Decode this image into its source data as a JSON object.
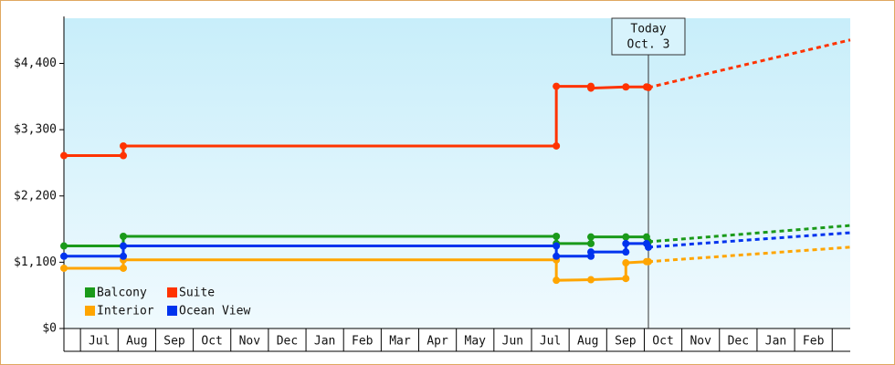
{
  "chart_data": {
    "type": "step-line",
    "ylim": [
      0,
      5150
    ],
    "yticks": [
      {
        "value": 0,
        "label": "$0"
      },
      {
        "value": 1100,
        "label": "$1,100"
      },
      {
        "value": 2200,
        "label": "$2,200"
      },
      {
        "value": 3300,
        "label": "$3,300"
      },
      {
        "value": 4400,
        "label": "$4,400"
      }
    ],
    "xlim": [
      0,
      20.92
    ],
    "xticks": [
      {
        "value": 0.94,
        "label": "Jul"
      },
      {
        "value": 1.94,
        "label": "Aug"
      },
      {
        "value": 2.94,
        "label": "Sep"
      },
      {
        "value": 3.94,
        "label": "Oct"
      },
      {
        "value": 4.94,
        "label": "Nov"
      },
      {
        "value": 5.94,
        "label": "Dec"
      },
      {
        "value": 6.94,
        "label": "Jan"
      },
      {
        "value": 7.94,
        "label": "Feb"
      },
      {
        "value": 8.94,
        "label": "Mar"
      },
      {
        "value": 9.94,
        "label": "Apr"
      },
      {
        "value": 10.94,
        "label": "May"
      },
      {
        "value": 11.94,
        "label": "Jun"
      },
      {
        "value": 12.94,
        "label": "Jul"
      },
      {
        "value": 13.94,
        "label": "Aug"
      },
      {
        "value": 14.94,
        "label": "Sep"
      },
      {
        "value": 15.94,
        "label": "Oct"
      },
      {
        "value": 16.94,
        "label": "Nov"
      },
      {
        "value": 17.94,
        "label": "Dec"
      },
      {
        "value": 18.94,
        "label": "Jan"
      },
      {
        "value": 19.94,
        "label": "Feb"
      }
    ],
    "today": {
      "x": 15.55,
      "lines": [
        "Today",
        "Oct. 3"
      ]
    },
    "series": [
      {
        "name": "Balcony",
        "color": "#1a9a1a",
        "x": [
          0,
          1.58,
          1.58,
          13.1,
          13.1,
          14.02,
          14.02,
          14.95,
          15.5,
          15.55
        ],
        "values": [
          1370,
          1370,
          1530,
          1530,
          1410,
          1410,
          1520,
          1520,
          1520,
          1440
        ],
        "projection_x": [
          15.55,
          20.92
        ],
        "projection_values": [
          1440,
          1710
        ]
      },
      {
        "name": "Suite",
        "color": "#ff3300",
        "x": [
          0,
          1.58,
          1.58,
          13.1,
          13.1,
          14.02,
          14.02,
          14.95,
          15.5,
          15.55
        ],
        "values": [
          2870,
          2870,
          3030,
          3030,
          4020,
          4020,
          3990,
          4010,
          4010,
          4000
        ],
        "projection_x": [
          15.55,
          20.92
        ],
        "projection_values": [
          4000,
          4790
        ]
      },
      {
        "name": "Interior",
        "color": "#ffa500",
        "x": [
          0,
          1.58,
          1.58,
          13.1,
          13.1,
          14.02,
          14.95,
          14.95,
          15.5,
          15.55
        ],
        "values": [
          1000,
          1000,
          1140,
          1140,
          800,
          810,
          830,
          1090,
          1110,
          1110
        ],
        "projection_x": [
          15.55,
          20.92
        ],
        "projection_values": [
          1110,
          1350
        ]
      },
      {
        "name": "Ocean View",
        "color": "#0033ee",
        "x": [
          0,
          1.58,
          1.58,
          13.1,
          13.1,
          14.02,
          14.02,
          14.95,
          14.95,
          15.5,
          15.55
        ],
        "values": [
          1200,
          1200,
          1370,
          1370,
          1200,
          1200,
          1270,
          1270,
          1410,
          1410,
          1350
        ],
        "projection_x": [
          15.55,
          20.92
        ],
        "projection_values": [
          1350,
          1590
        ]
      }
    ]
  }
}
